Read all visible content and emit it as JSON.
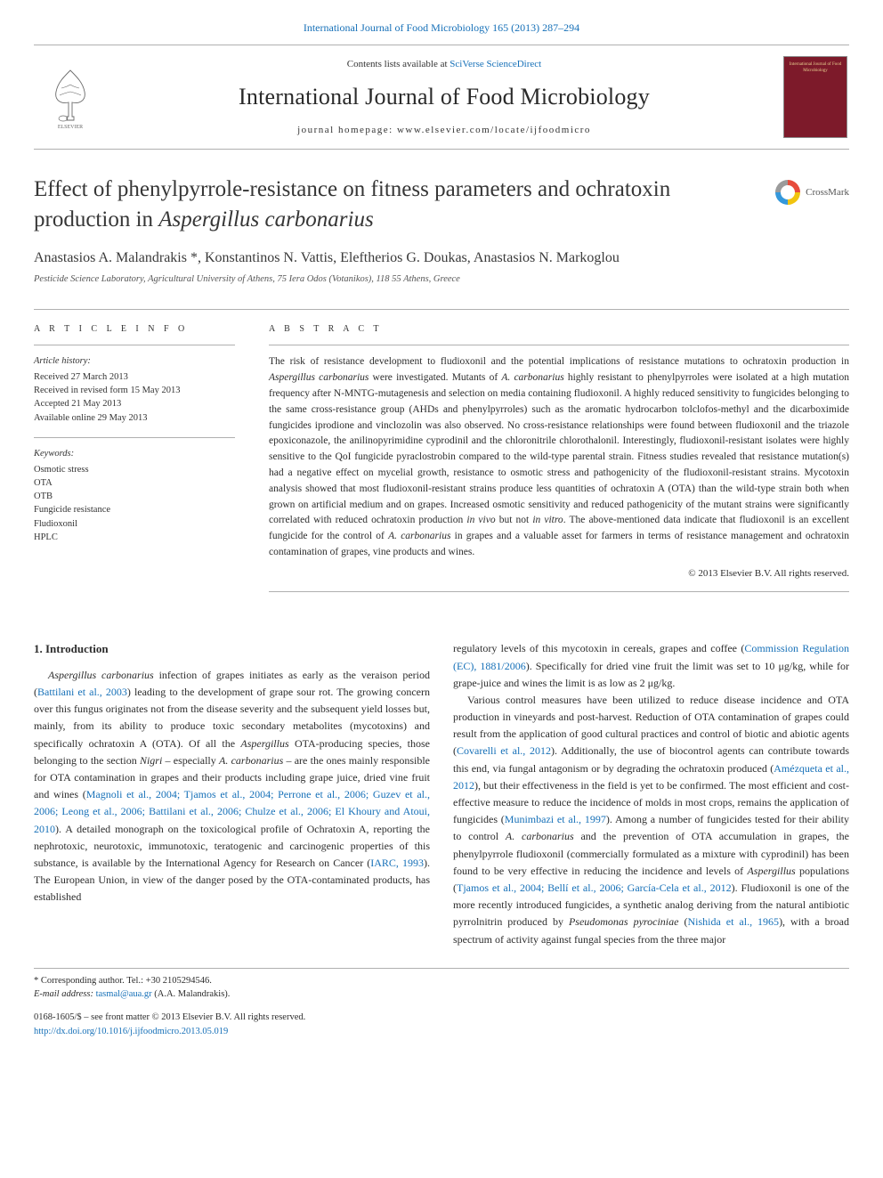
{
  "topLink": {
    "prefix": "",
    "linkText": "International Journal of Food Microbiology 165 (2013) 287–294",
    "url": "#"
  },
  "banner": {
    "contentsPrefix": "Contents lists available at ",
    "contentsLink": "SciVerse ScienceDirect",
    "journalTitle": "International Journal of Food Microbiology",
    "homepageLabel": "journal homepage: www.elsevier.com/locate/ijfoodmicro",
    "coverTitle": "International Journal of\nFood Microbiology",
    "publisher": "ELSEVIER"
  },
  "article": {
    "title": "Effect of phenylpyrrole-resistance on fitness parameters and ochratoxin production in <em>Aspergillus carbonarius</em>",
    "crossmarkLabel": "CrossMark",
    "authors": "Anastasios A. Malandrakis *, Konstantinos N. Vattis, Eleftherios G. Doukas, Anastasios N. Markoglou",
    "affiliation": "Pesticide Science Laboratory, Agricultural University of Athens, 75 Iera Odos (Votanikos), 118 55 Athens, Greece"
  },
  "side": {
    "infoLabel": "A R T I C L E   I N F O",
    "historyHead": "Article history:",
    "history": "Received 27 March 2013\nReceived in revised form 15 May 2013\nAccepted 21 May 2013\nAvailable online 29 May 2013",
    "keywordsHead": "Keywords:",
    "keywords": "Osmotic stress\nOTA\nOTB\nFungicide resistance\nFludioxonil\nHPLC"
  },
  "abstract": {
    "label": "A B S T R A C T",
    "text": "The risk of resistance development to fludioxonil and the potential implications of resistance mutations to ochratoxin production in <em>Aspergillus carbonarius</em> were investigated. Mutants of <em>A. carbonarius</em> highly resistant to phenylpyrroles were isolated at a high mutation frequency after N-MNTG-mutagenesis and selection on media containing fludioxonil. A highly reduced sensitivity to fungicides belonging to the same cross-resistance group (AHDs and phenylpyrroles) such as the aromatic hydrocarbon tolclofos-methyl and the dicarboximide fungicides iprodione and vinclozolin was also observed. No cross-resistance relationships were found between fludioxonil and the triazole epoxiconazole, the anilinopyrimidine cyprodinil and the chloronitrile chlorothalonil. Interestingly, fludioxonil-resistant isolates were highly sensitive to the QoI fungicide pyraclostrobin compared to the wild-type parental strain. Fitness studies revealed that resistance mutation(s) had a negative effect on mycelial growth, resistance to osmotic stress and pathogenicity of the fludioxonil-resistant strains. Mycotoxin analysis showed that most fludioxonil-resistant strains produce less quantities of ochratoxin A (OTA) than the wild-type strain both when grown on artificial medium and on grapes. Increased osmotic sensitivity and reduced pathogenicity of the mutant strains were significantly correlated with reduced ochratoxin production <em>in vivo</em> but not <em>in vitro</em>. The above-mentioned data indicate that fludioxonil is an excellent fungicide for the control of <em>A. carbonarius</em> in grapes and a valuable asset for farmers in terms of resistance management and ochratoxin contamination of grapes, vine products and wines.",
    "copyright": "© 2013 Elsevier B.V. All rights reserved."
  },
  "body": {
    "sec1Head": "1. Introduction",
    "col1p1": "<em>Aspergillus carbonarius</em> infection of grapes initiates as early as the veraison period (<a href=\"#\">Battilani et al., 2003</a>) leading to the development of grape sour rot. The growing concern over this fungus originates not from the disease severity and the subsequent yield losses but, mainly, from its ability to produce toxic secondary metabolites (mycotoxins) and specifically ochratoxin A (OTA). Of all the <em>Aspergillus</em> OTA-producing species, those belonging to the section <em>Nigri</em> – especially <em>A. carbonarius</em> – are the ones mainly responsible for OTA contamination in grapes and their products including grape juice, dried vine fruit and wines (<a href=\"#\">Magnoli et al., 2004; Tjamos et al., 2004; Perrone et al., 2006; Guzev et al., 2006; Leong et al., 2006; Battilani et al., 2006; Chulze et al., 2006; El Khoury and Atoui, 2010</a>). A detailed monograph on the toxicological profile of Ochratoxin A, reporting the nephrotoxic, neurotoxic, immunotoxic, teratogenic and carcinogenic properties of this substance, is available by the International Agency for Research on Cancer (<a href=\"#\">IARC, 1993</a>). The European Union, in view of the danger posed by the OTA-contaminated products, has established",
    "col2p1": "regulatory levels of this mycotoxin in cereals, grapes and coffee (<a href=\"#\">Commission Regulation (EC), 1881/2006</a>). Specifically for dried vine fruit the limit was set to 10 μg/kg, while for grape-juice and wines the limit is as low as 2 μg/kg.",
    "col2p2": "Various control measures have been utilized to reduce disease incidence and OTA production in vineyards and post-harvest. Reduction of OTA contamination of grapes could result from the application of good cultural practices and control of biotic and abiotic agents (<a href=\"#\">Covarelli et al., 2012</a>). Additionally, the use of biocontrol agents can contribute towards this end, via fungal antagonism or by degrading the ochratoxin produced (<a href=\"#\">Amézqueta et al., 2012</a>), but their effectiveness in the field is yet to be confirmed. The most efficient and cost-effective measure to reduce the incidence of molds in most crops, remains the application of fungicides (<a href=\"#\">Munimbazi et al., 1997</a>). Among a number of fungicides tested for their ability to control <em>A. carbonarius</em> and the prevention of OTA accumulation in grapes, the phenylpyrrole fludioxonil (commercially formulated as a mixture with cyprodinil) has been found to be very effective in reducing the incidence and levels of <em>Aspergillus</em> populations (<a href=\"#\">Tjamos et al., 2004; Bellí et al., 2006; García-Cela et al., 2012</a>). Fludioxonil is one of the more recently introduced fungicides, a synthetic analog deriving from the natural antibiotic pyrrolnitrin produced by <em>Pseudomonas pyrociniae</em> (<a href=\"#\">Nishida et al., 1965</a>), with a broad spectrum of activity against fungal species from the three major"
  },
  "footer": {
    "corrLabel": "* Corresponding author. Tel.: +30 2105294546.",
    "emailLabel": "E-mail address:",
    "email": "tasmal@aua.gr",
    "emailSuffix": " (A.A. Malandrakis).",
    "issn": "0168-1605/$ – see front matter © 2013 Elsevier B.V. All rights reserved.",
    "doi": "http://dx.doi.org/10.1016/j.ijfoodmicro.2013.05.019"
  },
  "colors": {
    "link": "#1670b8",
    "rule": "#b0b0b0",
    "cover": "#7d1a2a",
    "coverText": "#e8d090"
  },
  "fonts": {
    "journalTitle": 26,
    "articleTitle": 25,
    "authors": 16,
    "body": 12,
    "abstract": 11.5,
    "side": 10.5,
    "footer": 10.5
  }
}
